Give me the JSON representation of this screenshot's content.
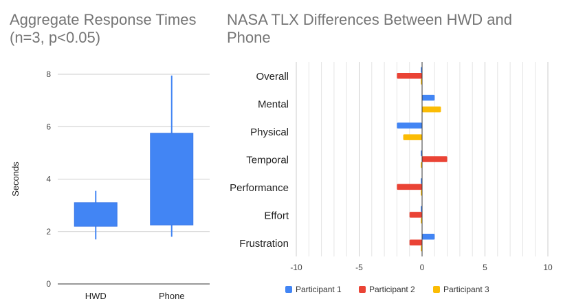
{
  "chart_data": [
    {
      "type": "candlestick",
      "title": "Aggregate Response Times\n(n=3, p<0.05)",
      "xlabel": "",
      "ylabel": "Seconds",
      "ylim": [
        0,
        8
      ],
      "yticks": [
        0,
        2,
        4,
        6,
        8
      ],
      "grid": true,
      "categories": [
        "HWD",
        "Phone"
      ],
      "boxes": [
        {
          "category": "HWD",
          "low": 1.7,
          "open": 2.2,
          "close": 3.1,
          "high": 3.55
        },
        {
          "category": "Phone",
          "low": 1.8,
          "open": 2.25,
          "close": 5.75,
          "high": 7.95
        }
      ],
      "color": "#4285f4"
    },
    {
      "type": "bar",
      "orientation": "horizontal",
      "title": "NASA TLX Differences Between HWD and Phone",
      "xlabel": "",
      "ylabel": "",
      "xlim": [
        -10,
        10
      ],
      "xticks": [
        -10,
        -5,
        0,
        5,
        10
      ],
      "grid": true,
      "legend_position": "bottom",
      "categories": [
        "Overall",
        "Mental",
        "Physical",
        "Temporal",
        "Performance",
        "Effort",
        "Frustration"
      ],
      "series": [
        {
          "name": "Participant 1",
          "color": "#4285f4",
          "values": [
            -0.1,
            1,
            -2,
            -0.1,
            -0.1,
            -0.1,
            1
          ]
        },
        {
          "name": "Participant 2",
          "color": "#ea4335",
          "values": [
            -2,
            0,
            0,
            2,
            -2,
            -1,
            -1
          ]
        },
        {
          "name": "Participant 3",
          "color": "#fbbc04",
          "values": [
            -0.1,
            1.5,
            -1.5,
            -0.1,
            -0.1,
            -0.1,
            -0.1
          ]
        }
      ]
    }
  ]
}
